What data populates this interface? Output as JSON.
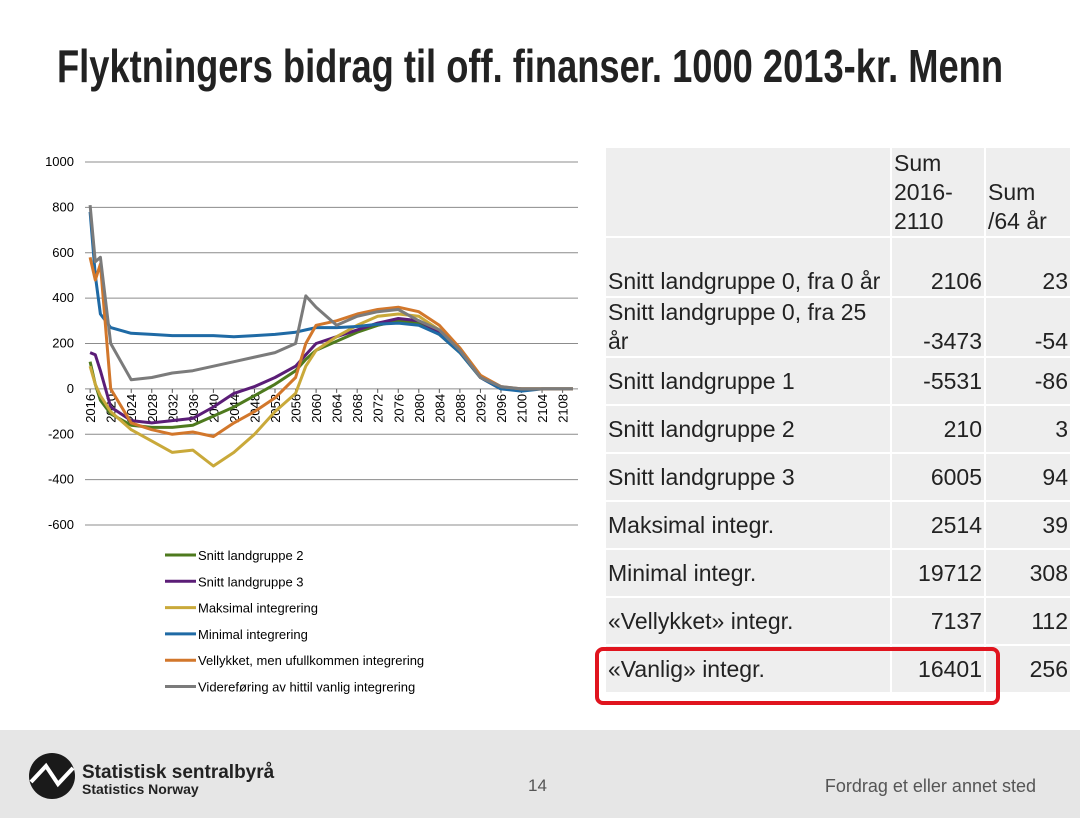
{
  "header": {
    "title": "Flyktningers bidrag til off. finanser. 1000 2013-kr. Menn"
  },
  "chart_data": {
    "type": "line",
    "x": [
      2016,
      2017,
      2018,
      2020,
      2024,
      2028,
      2032,
      2036,
      2040,
      2044,
      2048,
      2052,
      2056,
      2058,
      2060,
      2064,
      2068,
      2072,
      2076,
      2080,
      2084,
      2088,
      2092,
      2096,
      2100,
      2104,
      2108,
      2110
    ],
    "xlim": [
      2015,
      2111
    ],
    "xticks": [
      2016,
      2020,
      2024,
      2028,
      2032,
      2036,
      2040,
      2044,
      2048,
      2052,
      2056,
      2060,
      2064,
      2068,
      2072,
      2076,
      2080,
      2084,
      2088,
      2092,
      2096,
      2100,
      2104,
      2108
    ],
    "ylim": [
      -600,
      1000
    ],
    "yticks": [
      -600,
      -400,
      -200,
      0,
      200,
      400,
      600,
      800,
      1000
    ],
    "grid": true,
    "series": [
      {
        "name": "Snitt landgruppe 2",
        "color": "#4e7a1e",
        "values": [
          120,
          20,
          -50,
          -110,
          -160,
          -170,
          -170,
          -160,
          -120,
          -80,
          -30,
          20,
          80,
          130,
          170,
          210,
          250,
          280,
          300,
          290,
          240,
          160,
          50,
          0,
          0,
          0,
          0,
          0
        ]
      },
      {
        "name": "Snitt landgruppe 3",
        "color": "#5b1d77",
        "values": [
          160,
          150,
          80,
          -80,
          -140,
          -150,
          -140,
          -130,
          -80,
          -20,
          10,
          50,
          100,
          150,
          200,
          230,
          260,
          290,
          310,
          300,
          250,
          170,
          50,
          0,
          0,
          0,
          0,
          0
        ]
      },
      {
        "name": "Maksimal integrering",
        "color": "#c9a93a",
        "values": [
          100,
          20,
          -30,
          -100,
          -180,
          -230,
          -280,
          -270,
          -340,
          -280,
          -200,
          -100,
          -20,
          100,
          170,
          230,
          280,
          320,
          330,
          320,
          260,
          180,
          60,
          0,
          0,
          0,
          0,
          0
        ]
      },
      {
        "name": "Minimal integrering",
        "color": "#1f6aa5",
        "values": [
          780,
          500,
          330,
          270,
          245,
          240,
          235,
          235,
          235,
          230,
          235,
          240,
          250,
          260,
          270,
          270,
          275,
          285,
          290,
          280,
          240,
          160,
          50,
          0,
          -10,
          0,
          0,
          0
        ]
      },
      {
        "name": "Vellykket, men ufullkommen integrering",
        "color": "#d2772b",
        "values": [
          580,
          480,
          550,
          0,
          -150,
          -180,
          -200,
          -190,
          -210,
          -150,
          -100,
          -40,
          50,
          200,
          280,
          300,
          330,
          350,
          360,
          340,
          280,
          180,
          60,
          10,
          0,
          0,
          0,
          0
        ]
      },
      {
        "name": "Videreføring av hittil vanlig integrering",
        "color": "#7b7b7b",
        "values": [
          810,
          560,
          580,
          200,
          40,
          50,
          70,
          80,
          100,
          120,
          140,
          160,
          200,
          410,
          360,
          280,
          320,
          340,
          350,
          300,
          260,
          170,
          50,
          10,
          0,
          0,
          0,
          0
        ]
      }
    ]
  },
  "table": {
    "columns": [
      "Sum 2016-2110",
      "Sum /64 år"
    ],
    "rows": [
      [
        "Snitt landgruppe 0, fra 0 år",
        2106,
        23
      ],
      [
        "Snitt landgruppe 0, fra 25 år",
        -3473,
        -54
      ],
      [
        "Snitt landgruppe 1",
        -5531,
        -86
      ],
      [
        "Snitt landgruppe 2",
        210,
        3
      ],
      [
        "Snitt landgruppe 3",
        6005,
        94
      ],
      [
        "Maksimal integr.",
        2514,
        39
      ],
      [
        "Minimal integr.",
        19712,
        308
      ],
      [
        "«Vellykket» integr.",
        7137,
        112
      ],
      [
        "«Vanlig» integr.",
        16401,
        256
      ]
    ]
  },
  "footer": {
    "org": "Statistisk sentralbyrå",
    "org_en": "Statistics Norway",
    "page": "14",
    "note": "Fordrag et eller annet sted"
  }
}
